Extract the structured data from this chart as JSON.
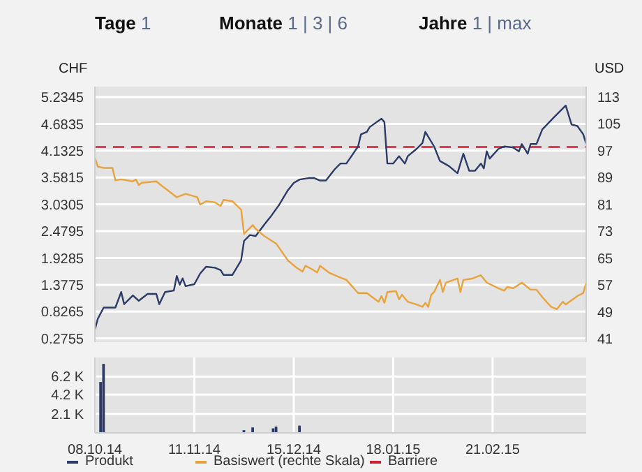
{
  "chart_data": [
    {
      "type": "line",
      "ylabel": "CHF",
      "y2label": "USD",
      "annotations": [
        "Tage 1",
        "Monate 1 | 3 | 6",
        "Jahre 1 | max"
      ],
      "xlim": [
        "2014-10-08",
        "2015-03-25"
      ],
      "xticks": [
        {
          "value": "2014-10-08",
          "label": null
        },
        {
          "value": "2014-11-11",
          "label": null
        },
        {
          "value": "2014-12-15",
          "label": null
        },
        {
          "value": "2015-01-18",
          "label": null
        },
        {
          "value": "2015-02-21",
          "label": null
        }
      ],
      "ylim": [
        0.2,
        5.45
      ],
      "yticks": [
        0.2755,
        0.8265,
        1.3775,
        1.9285,
        2.4795,
        3.0305,
        3.5815,
        4.1325,
        4.6835,
        5.2345
      ],
      "y2lim": [
        40,
        116
      ],
      "y2ticks": [
        41,
        49,
        57,
        65,
        73,
        81,
        89,
        97,
        105,
        113
      ],
      "tick_labels": "y",
      "grid": true,
      "legend": "bottom",
      "marker": "none",
      "line_style": "solid",
      "ref_lines": [
        {
          "axis": "y",
          "value": 4.21,
          "label": "Barriere",
          "color": "#cc2233",
          "line_style": "dashed"
        }
      ],
      "series": [
        {
          "name": "Produkt",
          "color": "#2b3a67",
          "x": [
            "2014-10-08",
            "2014-10-09",
            "2014-10-11",
            "2014-10-15",
            "2014-10-17",
            "2014-10-18",
            "2014-10-21",
            "2014-10-23",
            "2014-10-26",
            "2014-10-29",
            "2014-10-30",
            "2014-11-01",
            "2014-11-04",
            "2014-11-05",
            "2014-11-06",
            "2014-11-07",
            "2014-11-08",
            "2014-11-11",
            "2014-11-13",
            "2014-11-15",
            "2014-11-18",
            "2014-11-20",
            "2014-11-21",
            "2014-11-24",
            "2014-11-27",
            "2014-11-28",
            "2014-11-30",
            "2014-12-02",
            "2014-12-05",
            "2014-12-07",
            "2014-12-10",
            "2014-12-13",
            "2014-12-15",
            "2014-12-17",
            "2014-12-20",
            "2014-12-22",
            "2014-12-24",
            "2014-12-26",
            "2014-12-29",
            "2014-12-31",
            "2015-01-02",
            "2015-01-06",
            "2015-01-07",
            "2015-01-09",
            "2015-01-10",
            "2015-01-14",
            "2015-01-15",
            "2015-01-16",
            "2015-01-18",
            "2015-01-20",
            "2015-01-22",
            "2015-01-23",
            "2015-01-26",
            "2015-01-28",
            "2015-01-29",
            "2015-02-01",
            "2015-02-03",
            "2015-02-06",
            "2015-02-09",
            "2015-02-11",
            "2015-02-13",
            "2015-02-15",
            "2015-02-17",
            "2015-02-18",
            "2015-02-19",
            "2015-02-20",
            "2015-02-23",
            "2015-02-25",
            "2015-02-28",
            "2015-03-02",
            "2015-03-03",
            "2015-03-05",
            "2015-03-06",
            "2015-03-08",
            "2015-03-10",
            "2015-03-14",
            "2015-03-18",
            "2015-03-20",
            "2015-03-22",
            "2015-03-24",
            "2015-03-25"
          ],
          "values": [
            0.46,
            0.68,
            0.91,
            0.91,
            1.23,
            0.98,
            1.16,
            1.05,
            1.19,
            1.19,
            0.98,
            1.23,
            1.26,
            1.56,
            1.38,
            1.51,
            1.35,
            1.39,
            1.61,
            1.75,
            1.73,
            1.68,
            1.58,
            1.58,
            1.88,
            2.28,
            2.4,
            2.38,
            2.62,
            2.77,
            3.02,
            3.32,
            3.47,
            3.54,
            3.57,
            3.57,
            3.52,
            3.52,
            3.75,
            3.87,
            3.87,
            4.22,
            4.47,
            4.52,
            4.62,
            4.79,
            4.72,
            3.87,
            3.87,
            4.02,
            3.87,
            4.02,
            4.17,
            4.29,
            4.52,
            4.22,
            3.92,
            3.82,
            3.67,
            4.07,
            3.72,
            3.72,
            3.87,
            3.77,
            4.12,
            3.97,
            4.17,
            4.22,
            4.2,
            4.12,
            4.27,
            4.07,
            4.27,
            4.27,
            4.57,
            4.82,
            5.06,
            4.67,
            4.64,
            4.47,
            4.27
          ]
        },
        {
          "name": "Basiswert (rechte Skala)",
          "color": "#e8a33c",
          "axis": "y2",
          "x": [
            "2014-10-08",
            "2014-10-09",
            "2014-10-11",
            "2014-10-14",
            "2014-10-15",
            "2014-10-17",
            "2014-10-21",
            "2014-10-22",
            "2014-10-23",
            "2014-10-24",
            "2014-10-29",
            "2014-10-31",
            "2014-11-05",
            "2014-11-08",
            "2014-11-12",
            "2014-11-13",
            "2014-11-15",
            "2014-11-18",
            "2014-11-20",
            "2014-11-21",
            "2014-11-24",
            "2014-11-27",
            "2014-11-28",
            "2014-12-01",
            "2014-12-02",
            "2014-12-05",
            "2014-12-09",
            "2014-12-13",
            "2014-12-16",
            "2014-12-18",
            "2014-12-19",
            "2014-12-21",
            "2014-12-23",
            "2014-12-24",
            "2014-12-27",
            "2014-12-29",
            "2014-12-31",
            "2015-01-02",
            "2015-01-06",
            "2015-01-09",
            "2015-01-13",
            "2015-01-14",
            "2015-01-15",
            "2015-01-16",
            "2015-01-18",
            "2015-01-19",
            "2015-01-20",
            "2015-01-21",
            "2015-01-23",
            "2015-01-26",
            "2015-01-28",
            "2015-01-29",
            "2015-01-30",
            "2015-01-31",
            "2015-02-01",
            "2015-02-03",
            "2015-02-04",
            "2015-02-05",
            "2015-02-09",
            "2015-02-10",
            "2015-02-11",
            "2015-02-14",
            "2015-02-17",
            "2015-02-19",
            "2015-02-23",
            "2015-02-25",
            "2015-02-26",
            "2015-02-28",
            "2015-03-03",
            "2015-03-06",
            "2015-03-08",
            "2015-03-10",
            "2015-03-13",
            "2015-03-15",
            "2015-03-17",
            "2015-03-18",
            "2015-03-22",
            "2015-03-24",
            "2015-03-25"
          ],
          "values": [
            94.9,
            92.2,
            91.8,
            91.8,
            88.1,
            88.4,
            87.8,
            88.4,
            86.7,
            87.4,
            87.8,
            86.4,
            83.1,
            84.1,
            83.1,
            80.9,
            81.9,
            81.6,
            80.5,
            82.3,
            81.9,
            79.4,
            72.2,
            74.8,
            73.7,
            71.5,
            69.3,
            64.3,
            62.1,
            61.0,
            62.7,
            61.8,
            60.7,
            62.7,
            60.7,
            59.9,
            59.2,
            58.5,
            54.6,
            54.6,
            52.0,
            53.7,
            51.7,
            54.9,
            55.1,
            55.1,
            52.7,
            54.1,
            52.0,
            51.2,
            50.5,
            51.7,
            50.5,
            54.1,
            54.9,
            58.5,
            54.9,
            57.7,
            58.9,
            54.9,
            58.5,
            58.9,
            59.9,
            57.7,
            56.0,
            55.3,
            56.4,
            56.0,
            57.7,
            55.6,
            55.6,
            53.4,
            50.5,
            49.8,
            52.0,
            51.2,
            53.7,
            54.6,
            57.7
          ]
        }
      ]
    },
    {
      "type": "bar",
      "grid": true,
      "xlim": [
        "2014-10-08",
        "2015-03-25"
      ],
      "xticks": [
        {
          "value": "2014-10-08",
          "label": "08.10.14"
        },
        {
          "value": "2014-11-11",
          "label": "11.11.14"
        },
        {
          "value": "2014-12-15",
          "label": "15.12.14"
        },
        {
          "value": "2015-01-18",
          "label": "18.01.15"
        },
        {
          "value": "2015-02-21",
          "label": "21.02.15"
        }
      ],
      "ylim": [
        0,
        8.3
      ],
      "yticks": [
        {
          "value": 2.1,
          "label": "2.1 K"
        },
        {
          "value": 4.2,
          "label": "4.2 K"
        },
        {
          "value": 6.2,
          "label": "6.2 K"
        }
      ],
      "series": [
        {
          "color": "#2b3a67",
          "x": [
            "2014-10-10",
            "2014-10-11",
            "2014-11-28",
            "2014-12-01",
            "2014-12-08",
            "2014-12-09",
            "2014-12-17"
          ],
          "values": [
            5.6,
            7.6,
            0.3,
            0.6,
            0.5,
            0.7,
            0.8
          ]
        }
      ]
    }
  ]
}
